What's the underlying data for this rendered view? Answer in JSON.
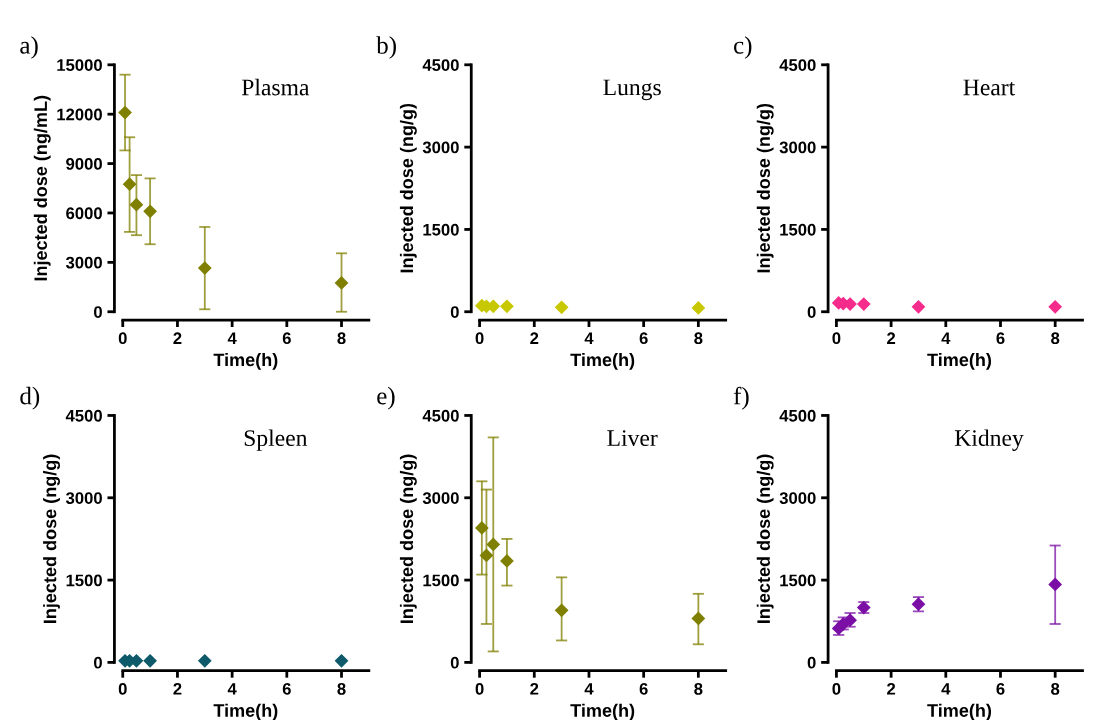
{
  "chart_data": [
    {
      "type": "scatter",
      "title": "Plasma",
      "annotations": [
        "a)"
      ],
      "xlabel": "Time(h)",
      "ylabel": "Injected dose (ng/mL)",
      "x": [
        0.083,
        0.25,
        0.5,
        1,
        3,
        8
      ],
      "marker": "diamond",
      "grid": false,
      "xlim": [
        0,
        9
      ],
      "xticks": [
        0,
        2,
        4,
        6,
        8
      ],
      "ylim": [
        0,
        15000
      ],
      "yticks": [
        0,
        3000,
        6000,
        9000,
        12000,
        15000
      ],
      "series": [
        {
          "color": "#7f7f00",
          "values": [
            12100,
            7750,
            6500,
            6100,
            2650,
            1750
          ],
          "errors": [
            [
              9800,
              14400
            ],
            [
              4850,
              10600
            ],
            [
              4650,
              8300
            ],
            [
              4100,
              8100
            ],
            [
              150,
              5150
            ],
            [
              0,
              3550
            ]
          ]
        }
      ]
    },
    {
      "type": "scatter",
      "title": "Lungs",
      "annotations": [
        "b)"
      ],
      "xlabel": "Time(h)",
      "ylabel": "Injected dose (ng/g)",
      "x": [
        0.083,
        0.25,
        0.5,
        1,
        3,
        8
      ],
      "marker": "diamond",
      "grid": false,
      "xlim": [
        0,
        9
      ],
      "xticks": [
        0,
        2,
        4,
        6,
        8
      ],
      "ylim": [
        0,
        4500
      ],
      "yticks": [
        0,
        1500,
        3000,
        4500
      ],
      "series": [
        {
          "color": "#c8c800",
          "values": [
            110,
            100,
            100,
            100,
            80,
            70
          ]
        }
      ]
    },
    {
      "type": "scatter",
      "title": "Heart",
      "annotations": [
        "c)"
      ],
      "xlabel": "Time(h)",
      "ylabel": "Injected dose (ng/g)",
      "x": [
        0.083,
        0.25,
        0.5,
        1,
        3,
        8
      ],
      "marker": "diamond",
      "grid": false,
      "xlim": [
        0,
        9
      ],
      "xticks": [
        0,
        2,
        4,
        6,
        8
      ],
      "ylim": [
        0,
        4500
      ],
      "yticks": [
        0,
        1500,
        3000,
        4500
      ],
      "series": [
        {
          "color": "#f52c8c",
          "values": [
            160,
            150,
            140,
            140,
            90,
            90
          ]
        }
      ]
    },
    {
      "type": "scatter",
      "title": "Spleen",
      "annotations": [
        "d)"
      ],
      "xlabel": "Time(h)",
      "ylabel": "Injected dose (ng/g)",
      "x": [
        0.083,
        0.25,
        0.5,
        1,
        3,
        8
      ],
      "marker": "diamond",
      "grid": false,
      "xlim": [
        0,
        9
      ],
      "xticks": [
        0,
        2,
        4,
        6,
        8
      ],
      "ylim": [
        0,
        4500
      ],
      "yticks": [
        0,
        1500,
        3000,
        4500
      ],
      "series": [
        {
          "color": "#0f5a6a",
          "values": [
            30,
            30,
            30,
            30,
            30,
            30
          ]
        }
      ]
    },
    {
      "type": "scatter",
      "title": "Liver",
      "annotations": [
        "e)"
      ],
      "xlabel": "Time(h)",
      "ylabel": "Injected dose (ng/g)",
      "x": [
        0.083,
        0.25,
        0.5,
        1,
        3,
        8
      ],
      "marker": "diamond",
      "grid": false,
      "xlim": [
        0,
        9
      ],
      "xticks": [
        0,
        2,
        4,
        6,
        8
      ],
      "ylim": [
        0,
        4500
      ],
      "yticks": [
        0,
        1500,
        3000,
        4500
      ],
      "series": [
        {
          "color": "#7f7f00",
          "values": [
            2450,
            1950,
            2150,
            1850,
            950,
            800
          ],
          "errors": [
            [
              1600,
              3300
            ],
            [
              700,
              3150
            ],
            [
              200,
              4100
            ],
            [
              1400,
              2250
            ],
            [
              400,
              1550
            ],
            [
              330,
              1250
            ]
          ]
        }
      ]
    },
    {
      "type": "scatter",
      "title": "Kidney",
      "annotations": [
        "f)"
      ],
      "xlabel": "Time(h)",
      "ylabel": "Injected dose (ng/g)",
      "x": [
        0.083,
        0.25,
        0.5,
        1,
        3,
        8
      ],
      "marker": "diamond",
      "grid": false,
      "xlim": [
        0,
        9
      ],
      "xticks": [
        0,
        2,
        4,
        6,
        8
      ],
      "ylim": [
        0,
        4500
      ],
      "yticks": [
        0,
        1500,
        3000,
        4500
      ],
      "series": [
        {
          "color": "#7b0fa5",
          "values": [
            620,
            700,
            770,
            1000,
            1060,
            1420
          ],
          "errors": [
            [
              500,
              750
            ],
            [
              600,
              820
            ],
            [
              650,
              900
            ],
            [
              900,
              1100
            ],
            [
              930,
              1190
            ],
            [
              700,
              2130
            ]
          ]
        }
      ]
    }
  ]
}
